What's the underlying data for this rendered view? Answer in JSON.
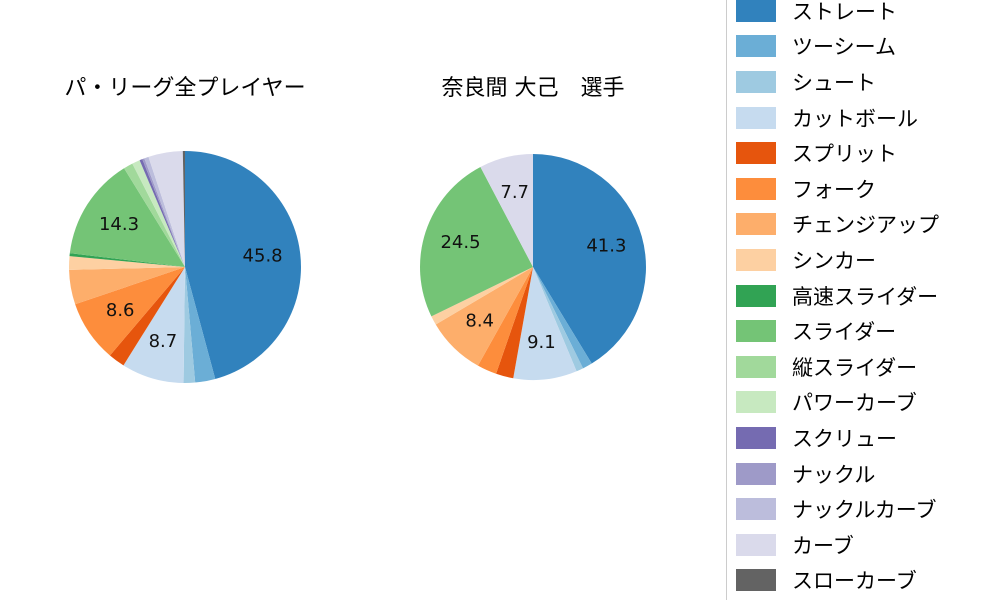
{
  "canvas": {
    "background": "#ffffff",
    "divider_color": "#cccccc"
  },
  "legend": {
    "items": [
      {
        "label": "ストレート",
        "color": "#3182bd"
      },
      {
        "label": "ツーシーム",
        "color": "#6baed6"
      },
      {
        "label": "シュート",
        "color": "#9ecae1"
      },
      {
        "label": "カットボール",
        "color": "#c6dbef"
      },
      {
        "label": "スプリット",
        "color": "#e6550d"
      },
      {
        "label": "フォーク",
        "color": "#fd8d3c"
      },
      {
        "label": "チェンジアップ",
        "color": "#fdae6b"
      },
      {
        "label": "シンカー",
        "color": "#fdd0a2"
      },
      {
        "label": "高速スライダー",
        "color": "#31a354"
      },
      {
        "label": "スライダー",
        "color": "#74c476"
      },
      {
        "label": "縦スライダー",
        "color": "#a1d99b"
      },
      {
        "label": "パワーカーブ",
        "color": "#c7e9c0"
      },
      {
        "label": "スクリュー",
        "color": "#756bb1"
      },
      {
        "label": "ナックル",
        "color": "#9e9ac8"
      },
      {
        "label": "ナックルカーブ",
        "color": "#bcbddc"
      },
      {
        "label": "カーブ",
        "color": "#dadaeb"
      },
      {
        "label": "スローカーブ",
        "color": "#636363"
      }
    ]
  },
  "chart_data": [
    {
      "type": "pie",
      "title": "パ・リーグ全プレイヤー",
      "unit": "percent",
      "start_angle_deg": 0,
      "direction": "clockwise",
      "radius": 116,
      "slices": [
        {
          "label": "ストレート",
          "value": 45.8,
          "value_label": "45.8"
        },
        {
          "label": "ツーシーム",
          "value": 2.8,
          "value_label": ""
        },
        {
          "label": "シュート",
          "value": 1.6,
          "value_label": ""
        },
        {
          "label": "カットボール",
          "value": 8.7,
          "value_label": "8.7"
        },
        {
          "label": "スプリット",
          "value": 2.3,
          "value_label": ""
        },
        {
          "label": "フォーク",
          "value": 8.6,
          "value_label": "8.6"
        },
        {
          "label": "チェンジアップ",
          "value": 4.8,
          "value_label": ""
        },
        {
          "label": "シンカー",
          "value": 1.9,
          "value_label": ""
        },
        {
          "label": "高速スライダー",
          "value": 0.4,
          "value_label": ""
        },
        {
          "label": "スライダー",
          "value": 14.3,
          "value_label": "14.3"
        },
        {
          "label": "縦スライダー",
          "value": 1.3,
          "value_label": ""
        },
        {
          "label": "パワーカーブ",
          "value": 1.1,
          "value_label": ""
        },
        {
          "label": "スクリュー",
          "value": 0.4,
          "value_label": ""
        },
        {
          "label": "ナックル",
          "value": 0.3,
          "value_label": ""
        },
        {
          "label": "ナックルカーブ",
          "value": 0.6,
          "value_label": ""
        },
        {
          "label": "カーブ",
          "value": 4.8,
          "value_label": ""
        },
        {
          "label": "スローカーブ",
          "value": 0.3,
          "value_label": ""
        }
      ]
    },
    {
      "type": "pie",
      "title": "奈良間 大己　選手",
      "unit": "percent",
      "start_angle_deg": 0,
      "direction": "clockwise",
      "radius": 113,
      "slices": [
        {
          "label": "ストレート",
          "value": 41.3,
          "value_label": "41.3"
        },
        {
          "label": "ツーシーム",
          "value": 1.4,
          "value_label": ""
        },
        {
          "label": "シュート",
          "value": 1.0,
          "value_label": ""
        },
        {
          "label": "カットボール",
          "value": 9.1,
          "value_label": "9.1"
        },
        {
          "label": "スプリット",
          "value": 2.5,
          "value_label": ""
        },
        {
          "label": "フォーク",
          "value": 2.8,
          "value_label": ""
        },
        {
          "label": "チェンジアップ",
          "value": 8.4,
          "value_label": "8.4"
        },
        {
          "label": "シンカー",
          "value": 1.3,
          "value_label": ""
        },
        {
          "label": "高速スライダー",
          "value": 0,
          "value_label": ""
        },
        {
          "label": "スライダー",
          "value": 24.5,
          "value_label": "24.5"
        },
        {
          "label": "縦スライダー",
          "value": 0,
          "value_label": ""
        },
        {
          "label": "パワーカーブ",
          "value": 0,
          "value_label": ""
        },
        {
          "label": "スクリュー",
          "value": 0,
          "value_label": ""
        },
        {
          "label": "ナックル",
          "value": 0,
          "value_label": ""
        },
        {
          "label": "ナックルカーブ",
          "value": 0,
          "value_label": ""
        },
        {
          "label": "カーブ",
          "value": 7.7,
          "value_label": "7.7"
        },
        {
          "label": "スローカーブ",
          "value": 0,
          "value_label": ""
        }
      ]
    }
  ]
}
